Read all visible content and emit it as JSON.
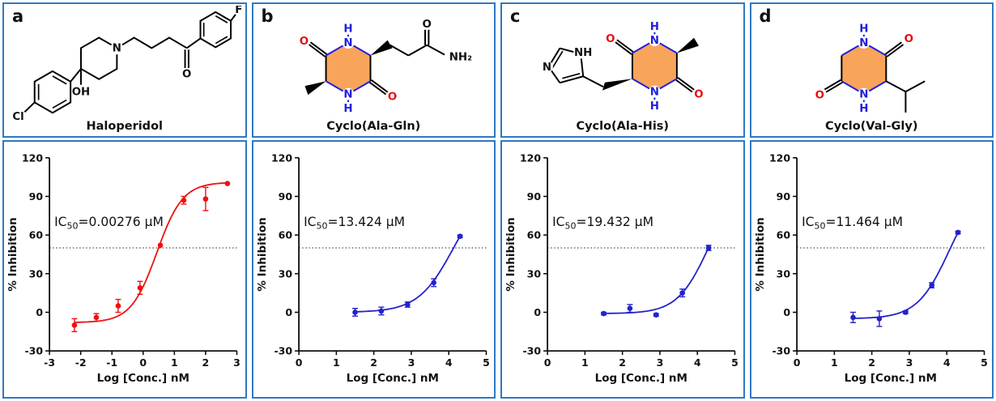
{
  "figure": {
    "border_color": "#2E79C3",
    "colors": {
      "ring_fill": "#F8A45B",
      "atom_nitrogen": "#2020DD",
      "atom_oxygen": "#E60E0E",
      "bond": "#000000",
      "series_red": "#F01010",
      "series_blue": "#2323CC"
    },
    "panels": [
      {
        "label": "a",
        "compound": "Haloperidol",
        "atoms": {
          "cl": "Cl",
          "n": "N",
          "oh": "OH",
          "o": "O",
          "f": "F"
        }
      },
      {
        "label": "b",
        "compound": "Cyclo(Ala-Gln)",
        "atoms": {
          "h_top": "H",
          "n_top": "N",
          "n_bot": "N",
          "h_bot": "H",
          "o_left": "O",
          "o_right": "O",
          "o_chain": "O",
          "nh2": "NH₂"
        }
      },
      {
        "label": "c",
        "compound": "Cyclo(Ala-His)",
        "atoms": {
          "n_im": "N",
          "nh_im": "NH",
          "h_top": "H",
          "n_top": "N",
          "n_bot": "N",
          "h_bot": "H",
          "o_left": "O",
          "o_right": "O"
        }
      },
      {
        "label": "d",
        "compound": "Cyclo(Val-Gly)",
        "atoms": {
          "h_top": "H",
          "n_top": "N",
          "n_bot": "N",
          "h_bot": "H",
          "o_left": "O",
          "o_right": "O"
        }
      }
    ]
  },
  "chart_data": [
    {
      "type": "scatter",
      "series_name": "Haloperidol",
      "color": "#F01010",
      "xlabel": "Log [Conc.] nM",
      "ylabel": "% Inhibition",
      "xlim": [
        -3,
        3
      ],
      "ylim": [
        -30,
        120
      ],
      "x_ticks": [
        -3,
        -2,
        -1,
        0,
        1,
        2,
        3
      ],
      "y_ticks": [
        -30,
        0,
        30,
        60,
        90,
        120
      ],
      "hline": 50,
      "grid": false,
      "legend": "none",
      "ic50": {
        "prefix": "IC",
        "sub": "50",
        "rest": "=0.00276 μM"
      },
      "x": [
        -2.2,
        -1.5,
        -0.8,
        -0.1,
        0.55,
        1.3,
        2.0,
        2.7
      ],
      "y": [
        -10,
        -4,
        5,
        19,
        52,
        87,
        88,
        100
      ],
      "err": [
        5,
        3,
        5,
        5,
        0,
        3,
        9,
        0
      ],
      "fit": {
        "bottom": -8,
        "top": 101,
        "logec50": 0.44,
        "hill": 1.05
      }
    },
    {
      "type": "scatter",
      "series_name": "Cyclo(Ala-Gln)",
      "color": "#2323CC",
      "xlabel": "Log [Conc.] nM",
      "ylabel": "% Inhibition",
      "xlim": [
        0,
        5
      ],
      "ylim": [
        -30,
        120
      ],
      "x_ticks": [
        0,
        1,
        2,
        3,
        4,
        5
      ],
      "y_ticks": [
        -30,
        0,
        30,
        60,
        90,
        120
      ],
      "hline": 50,
      "grid": false,
      "legend": "none",
      "ic50": {
        "prefix": "IC",
        "sub": "50",
        "rest": "=13.424 μM"
      },
      "x": [
        1.5,
        2.2,
        2.9,
        3.6,
        4.3
      ],
      "y": [
        0,
        1,
        6,
        23,
        59
      ],
      "err": [
        3,
        3,
        2,
        3,
        1
      ],
      "fit": {
        "bottom": 0,
        "top": 100,
        "logec50": 4.128,
        "hill": 0.92
      }
    },
    {
      "type": "scatter",
      "series_name": "Cyclo(Ala-His)",
      "color": "#2323CC",
      "xlabel": "Log [Conc.] nM",
      "ylabel": "% Inhibition",
      "xlim": [
        0,
        5
      ],
      "ylim": [
        -30,
        120
      ],
      "x_ticks": [
        0,
        1,
        2,
        3,
        4,
        5
      ],
      "y_ticks": [
        -30,
        0,
        30,
        60,
        90,
        120
      ],
      "hline": 50,
      "grid": false,
      "legend": "none",
      "ic50": {
        "prefix": "IC",
        "sub": "50",
        "rest": "=19.432 μM"
      },
      "x": [
        1.5,
        2.2,
        2.9,
        3.6,
        4.3
      ],
      "y": [
        -1,
        3,
        -2,
        15,
        50
      ],
      "err": [
        1,
        3,
        1,
        3,
        2
      ],
      "fit": {
        "bottom": -1,
        "top": 100,
        "logec50": 4.288,
        "hill": 1.05
      }
    },
    {
      "type": "scatter",
      "series_name": "Cyclo(Val-Gly)",
      "color": "#2323CC",
      "xlabel": "Log [Conc.] nM",
      "ylabel": "% Inhibition",
      "xlim": [
        0,
        5
      ],
      "ylim": [
        -30,
        120
      ],
      "x_ticks": [
        0,
        1,
        2,
        3,
        4,
        5
      ],
      "y_ticks": [
        -30,
        0,
        30,
        60,
        90,
        120
      ],
      "hline": 50,
      "grid": false,
      "legend": "none",
      "ic50": {
        "prefix": "IC",
        "sub": "50",
        "rest": "=11.464 μM"
      },
      "x": [
        1.5,
        2.2,
        2.9,
        3.6,
        4.3
      ],
      "y": [
        -4,
        -5,
        0,
        21,
        62
      ],
      "err": [
        4,
        6,
        1,
        2,
        1
      ],
      "fit": {
        "bottom": -5,
        "top": 100,
        "logec50": 4.059,
        "hill": 1.02
      }
    }
  ]
}
